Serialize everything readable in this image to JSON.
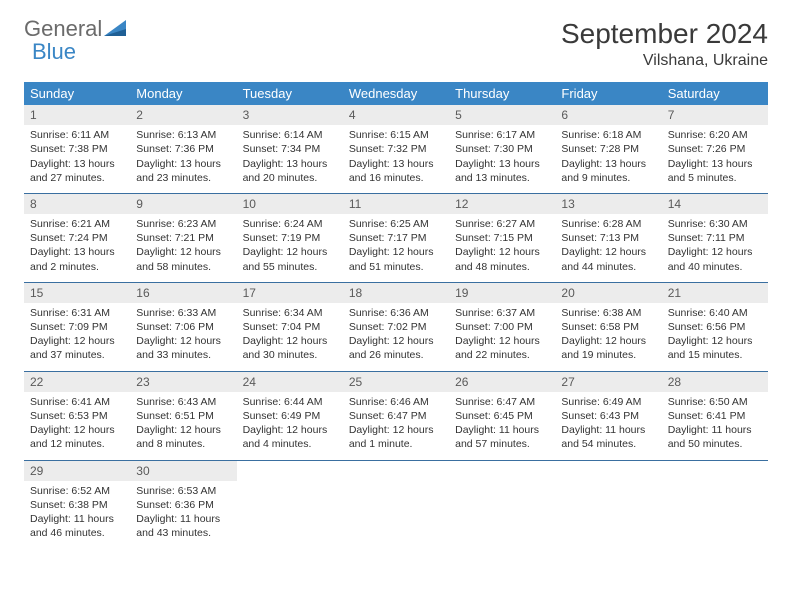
{
  "brand": {
    "word1": "General",
    "word2": "Blue"
  },
  "title": "September 2024",
  "location": "Vilshana, Ukraine",
  "colors": {
    "header_bg": "#3a86c5",
    "header_text": "#ffffff",
    "daynum_bg": "#ececec",
    "rule": "#3a6fa0",
    "brand_gray": "#6b6b6b",
    "brand_blue": "#3a86c5"
  },
  "weekdays": [
    "Sunday",
    "Monday",
    "Tuesday",
    "Wednesday",
    "Thursday",
    "Friday",
    "Saturday"
  ],
  "weeks": [
    [
      {
        "n": "1",
        "sr": "Sunrise: 6:11 AM",
        "ss": "Sunset: 7:38 PM",
        "d1": "Daylight: 13 hours",
        "d2": "and 27 minutes."
      },
      {
        "n": "2",
        "sr": "Sunrise: 6:13 AM",
        "ss": "Sunset: 7:36 PM",
        "d1": "Daylight: 13 hours",
        "d2": "and 23 minutes."
      },
      {
        "n": "3",
        "sr": "Sunrise: 6:14 AM",
        "ss": "Sunset: 7:34 PM",
        "d1": "Daylight: 13 hours",
        "d2": "and 20 minutes."
      },
      {
        "n": "4",
        "sr": "Sunrise: 6:15 AM",
        "ss": "Sunset: 7:32 PM",
        "d1": "Daylight: 13 hours",
        "d2": "and 16 minutes."
      },
      {
        "n": "5",
        "sr": "Sunrise: 6:17 AM",
        "ss": "Sunset: 7:30 PM",
        "d1": "Daylight: 13 hours",
        "d2": "and 13 minutes."
      },
      {
        "n": "6",
        "sr": "Sunrise: 6:18 AM",
        "ss": "Sunset: 7:28 PM",
        "d1": "Daylight: 13 hours",
        "d2": "and 9 minutes."
      },
      {
        "n": "7",
        "sr": "Sunrise: 6:20 AM",
        "ss": "Sunset: 7:26 PM",
        "d1": "Daylight: 13 hours",
        "d2": "and 5 minutes."
      }
    ],
    [
      {
        "n": "8",
        "sr": "Sunrise: 6:21 AM",
        "ss": "Sunset: 7:24 PM",
        "d1": "Daylight: 13 hours",
        "d2": "and 2 minutes."
      },
      {
        "n": "9",
        "sr": "Sunrise: 6:23 AM",
        "ss": "Sunset: 7:21 PM",
        "d1": "Daylight: 12 hours",
        "d2": "and 58 minutes."
      },
      {
        "n": "10",
        "sr": "Sunrise: 6:24 AM",
        "ss": "Sunset: 7:19 PM",
        "d1": "Daylight: 12 hours",
        "d2": "and 55 minutes."
      },
      {
        "n": "11",
        "sr": "Sunrise: 6:25 AM",
        "ss": "Sunset: 7:17 PM",
        "d1": "Daylight: 12 hours",
        "d2": "and 51 minutes."
      },
      {
        "n": "12",
        "sr": "Sunrise: 6:27 AM",
        "ss": "Sunset: 7:15 PM",
        "d1": "Daylight: 12 hours",
        "d2": "and 48 minutes."
      },
      {
        "n": "13",
        "sr": "Sunrise: 6:28 AM",
        "ss": "Sunset: 7:13 PM",
        "d1": "Daylight: 12 hours",
        "d2": "and 44 minutes."
      },
      {
        "n": "14",
        "sr": "Sunrise: 6:30 AM",
        "ss": "Sunset: 7:11 PM",
        "d1": "Daylight: 12 hours",
        "d2": "and 40 minutes."
      }
    ],
    [
      {
        "n": "15",
        "sr": "Sunrise: 6:31 AM",
        "ss": "Sunset: 7:09 PM",
        "d1": "Daylight: 12 hours",
        "d2": "and 37 minutes."
      },
      {
        "n": "16",
        "sr": "Sunrise: 6:33 AM",
        "ss": "Sunset: 7:06 PM",
        "d1": "Daylight: 12 hours",
        "d2": "and 33 minutes."
      },
      {
        "n": "17",
        "sr": "Sunrise: 6:34 AM",
        "ss": "Sunset: 7:04 PM",
        "d1": "Daylight: 12 hours",
        "d2": "and 30 minutes."
      },
      {
        "n": "18",
        "sr": "Sunrise: 6:36 AM",
        "ss": "Sunset: 7:02 PM",
        "d1": "Daylight: 12 hours",
        "d2": "and 26 minutes."
      },
      {
        "n": "19",
        "sr": "Sunrise: 6:37 AM",
        "ss": "Sunset: 7:00 PM",
        "d1": "Daylight: 12 hours",
        "d2": "and 22 minutes."
      },
      {
        "n": "20",
        "sr": "Sunrise: 6:38 AM",
        "ss": "Sunset: 6:58 PM",
        "d1": "Daylight: 12 hours",
        "d2": "and 19 minutes."
      },
      {
        "n": "21",
        "sr": "Sunrise: 6:40 AM",
        "ss": "Sunset: 6:56 PM",
        "d1": "Daylight: 12 hours",
        "d2": "and 15 minutes."
      }
    ],
    [
      {
        "n": "22",
        "sr": "Sunrise: 6:41 AM",
        "ss": "Sunset: 6:53 PM",
        "d1": "Daylight: 12 hours",
        "d2": "and 12 minutes."
      },
      {
        "n": "23",
        "sr": "Sunrise: 6:43 AM",
        "ss": "Sunset: 6:51 PM",
        "d1": "Daylight: 12 hours",
        "d2": "and 8 minutes."
      },
      {
        "n": "24",
        "sr": "Sunrise: 6:44 AM",
        "ss": "Sunset: 6:49 PM",
        "d1": "Daylight: 12 hours",
        "d2": "and 4 minutes."
      },
      {
        "n": "25",
        "sr": "Sunrise: 6:46 AM",
        "ss": "Sunset: 6:47 PM",
        "d1": "Daylight: 12 hours",
        "d2": "and 1 minute."
      },
      {
        "n": "26",
        "sr": "Sunrise: 6:47 AM",
        "ss": "Sunset: 6:45 PM",
        "d1": "Daylight: 11 hours",
        "d2": "and 57 minutes."
      },
      {
        "n": "27",
        "sr": "Sunrise: 6:49 AM",
        "ss": "Sunset: 6:43 PM",
        "d1": "Daylight: 11 hours",
        "d2": "and 54 minutes."
      },
      {
        "n": "28",
        "sr": "Sunrise: 6:50 AM",
        "ss": "Sunset: 6:41 PM",
        "d1": "Daylight: 11 hours",
        "d2": "and 50 minutes."
      }
    ],
    [
      {
        "n": "29",
        "sr": "Sunrise: 6:52 AM",
        "ss": "Sunset: 6:38 PM",
        "d1": "Daylight: 11 hours",
        "d2": "and 46 minutes."
      },
      {
        "n": "30",
        "sr": "Sunrise: 6:53 AM",
        "ss": "Sunset: 6:36 PM",
        "d1": "Daylight: 11 hours",
        "d2": "and 43 minutes."
      },
      {
        "empty": true
      },
      {
        "empty": true
      },
      {
        "empty": true
      },
      {
        "empty": true
      },
      {
        "empty": true
      }
    ]
  ]
}
